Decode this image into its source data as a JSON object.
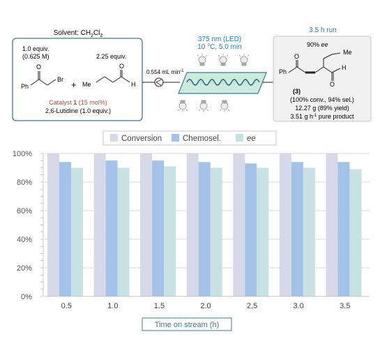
{
  "scheme": {
    "solvent_label": "Solvent: CH",
    "solvent_sub": "2",
    "solvent_cl": "Cl",
    "solvent_sub2": "2",
    "reagent1_equiv": "1.0 equiv.",
    "reagent1_conc": "(0.625 M)",
    "reagent1_ph": "Ph",
    "reagent1_o": "O",
    "reagent1_br": "Br",
    "plus": "+",
    "reagent2_equiv": "2.25 equiv.",
    "reagent2_me": "Me",
    "reagent2_o": "O",
    "reagent2_h": "H",
    "catalyst_prefix": "Catalyst ",
    "catalyst_num": "1",
    "catalyst_suffix": " (15 mol%)",
    "lutidine": "2,6-Lutidine (1.0 equiv.)",
    "flow_rate": "0.554 mL min",
    "flow_rate_sup": "-1",
    "light": "375 nm (LED)",
    "conditions": "10 °C, 5.0 min",
    "run_label": "3.5 h run",
    "product_ee_value": "90% ",
    "product_ee_label": "ee",
    "product_me": "Me",
    "product_ph": "Ph",
    "product_o1": "O",
    "product_o2": "O",
    "product_h": "H",
    "product_number": "(3)",
    "result1": "(100% conv., 94% sel.)",
    "result2": "12.27 g (89% yield)",
    "result3_prefix": "3.51 g h",
    "result3_sup": "-1",
    "result3_suffix": " pure product"
  },
  "colors": {
    "conversion": "#d6dae8",
    "chemosel": "#a4c2e8",
    "ee": "#c8e2e4",
    "box_border": "#3a7a96",
    "accent_blue": "#2a7ab8",
    "catalyst_red": "#b24a3c",
    "reactor_green": "#cdebdc"
  },
  "chart_data": {
    "type": "bar",
    "categories": [
      "0.5",
      "1.0",
      "1.5",
      "2.0",
      "2.5",
      "3.0",
      "3.5"
    ],
    "series": [
      {
        "name": "Conversion",
        "values": [
          100,
          100,
          100,
          100,
          100,
          100,
          100
        ]
      },
      {
        "name": "Chemosel.",
        "values": [
          94,
          95,
          95,
          94,
          93,
          94,
          94
        ]
      },
      {
        "name": "ee",
        "values": [
          90,
          90,
          91,
          90,
          90,
          90,
          89
        ]
      }
    ],
    "xlabel": "Time on stream (h)",
    "ylabel": "",
    "ylim": [
      0,
      100
    ],
    "yticks": [
      "0%",
      "20%",
      "40%",
      "60%",
      "80%",
      "100%"
    ],
    "legend_position": "top",
    "grid": true
  }
}
